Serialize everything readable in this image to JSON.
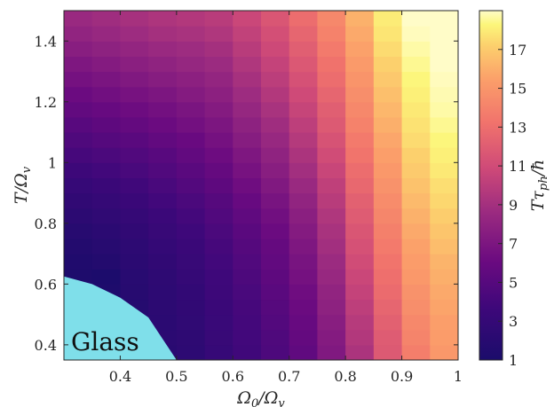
{
  "chart_data": {
    "type": "heatmap",
    "title": "",
    "xlabel": "Ω₀/Ω_v",
    "ylabel": "T/Ω_v",
    "colorbar_label": "Tτ_ph/ħ",
    "xlim": [
      0.3,
      1.0
    ],
    "ylim": [
      0.35,
      1.5
    ],
    "clim": [
      1,
      19
    ],
    "colormap": "magma-like (dark navy → purple → magenta → orange → pale yellow)",
    "x_ticks": [
      {
        "value": 0.4,
        "label": "0.4"
      },
      {
        "value": 0.5,
        "label": "0.5"
      },
      {
        "value": 0.6,
        "label": "0.6"
      },
      {
        "value": 0.7,
        "label": "0.7"
      },
      {
        "value": 0.8,
        "label": "0.8"
      },
      {
        "value": 0.9,
        "label": "0.9"
      },
      {
        "value": 1.0,
        "label": "1"
      }
    ],
    "y_ticks": [
      {
        "value": 0.4,
        "label": "0.4"
      },
      {
        "value": 0.6,
        "label": "0.6"
      },
      {
        "value": 0.8,
        "label": "0.8"
      },
      {
        "value": 1.0,
        "label": "1"
      },
      {
        "value": 1.2,
        "label": "1.2"
      },
      {
        "value": 1.4,
        "label": "1.4"
      }
    ],
    "colorbar_ticks": [
      {
        "value": 1,
        "label": "1"
      },
      {
        "value": 3,
        "label": "3"
      },
      {
        "value": 5,
        "label": "5"
      },
      {
        "value": 7,
        "label": "7"
      },
      {
        "value": 9,
        "label": "9"
      },
      {
        "value": 11,
        "label": "11"
      },
      {
        "value": 13,
        "label": "13"
      },
      {
        "value": 15,
        "label": "15"
      },
      {
        "value": 17,
        "label": "17"
      }
    ],
    "x_centers": [
      0.325,
      0.375,
      0.425,
      0.475,
      0.525,
      0.575,
      0.625,
      0.675,
      0.725,
      0.775,
      0.825,
      0.875,
      0.925,
      0.975
    ],
    "y_centers": [
      0.375,
      0.425,
      0.475,
      0.525,
      0.575,
      0.625,
      0.675,
      0.725,
      0.775,
      0.825,
      0.875,
      0.925,
      0.975,
      1.025,
      1.075,
      1.125,
      1.175,
      1.225,
      1.275,
      1.325,
      1.375,
      1.425,
      1.475
    ],
    "values": [
      [
        1.0,
        1.2,
        1.6,
        2.1,
        2.4,
        3.1,
        3.8,
        4.5,
        5.5,
        7.2,
        9.3,
        11.8,
        13.8,
        15.1
      ],
      [
        1.0,
        1.3,
        1.7,
        2.2,
        2.5,
        3.2,
        3.9,
        4.6,
        5.7,
        7.4,
        9.6,
        11.9,
        14.1,
        15.3
      ],
      [
        1.0,
        1.3,
        1.7,
        2.2,
        2.6,
        3.3,
        4.0,
        4.8,
        5.9,
        7.6,
        9.8,
        12.2,
        14.3,
        15.4
      ],
      [
        1.0,
        1.4,
        1.8,
        2.3,
        2.7,
        3.4,
        4.1,
        5.0,
        6.1,
        7.9,
        10.1,
        12.5,
        14.6,
        15.6
      ],
      [
        1.0,
        1.2,
        1.9,
        2.4,
        2.8,
        3.6,
        4.3,
        5.2,
        6.3,
        8.1,
        10.4,
        12.8,
        14.8,
        15.8
      ],
      [
        1.2,
        1.1,
        2.0,
        2.5,
        3.0,
        3.7,
        4.5,
        5.4,
        6.6,
        8.4,
        10.7,
        13.0,
        15.1,
        16.0
      ],
      [
        1.4,
        1.6,
        2.2,
        2.7,
        3.2,
        3.9,
        4.7,
        5.6,
        6.8,
        8.6,
        11.0,
        13.3,
        15.3,
        16.2
      ],
      [
        1.6,
        1.9,
        2.4,
        2.9,
        3.4,
        4.1,
        4.9,
        5.8,
        7.1,
        8.9,
        11.3,
        13.6,
        15.5,
        16.5
      ],
      [
        1.9,
        2.2,
        2.7,
        3.2,
        3.7,
        4.4,
        5.2,
        6.1,
        7.4,
        9.2,
        11.6,
        13.9,
        15.8,
        16.8
      ],
      [
        2.3,
        2.6,
        3.0,
        3.5,
        4.0,
        4.7,
        5.5,
        6.4,
        7.7,
        9.5,
        11.9,
        14.2,
        16.1,
        17.1
      ],
      [
        2.7,
        3.0,
        3.4,
        3.9,
        4.4,
        5.0,
        5.9,
        6.8,
        8.1,
        9.9,
        12.2,
        14.5,
        16.4,
        17.4
      ],
      [
        3.1,
        3.4,
        3.8,
        4.3,
        4.8,
        5.4,
        6.3,
        7.2,
        8.5,
        10.2,
        12.6,
        14.8,
        16.7,
        17.6
      ],
      [
        3.6,
        3.9,
        4.3,
        4.7,
        5.2,
        5.8,
        6.7,
        7.6,
        8.9,
        10.6,
        12.9,
        15.1,
        17.0,
        17.9
      ],
      [
        4.1,
        4.4,
        4.7,
        5.1,
        5.6,
        6.2,
        7.1,
        8.0,
        9.3,
        11.0,
        13.3,
        15.4,
        17.2,
        18.1
      ],
      [
        4.6,
        4.9,
        5.2,
        5.6,
        6.0,
        6.6,
        7.5,
        8.4,
        9.7,
        11.4,
        13.6,
        15.7,
        17.5,
        18.3
      ],
      [
        5.1,
        5.4,
        5.7,
        6.1,
        6.5,
        7.0,
        7.9,
        8.8,
        10.1,
        11.8,
        14.0,
        16.0,
        17.7,
        18.5
      ],
      [
        5.6,
        5.9,
        6.2,
        6.5,
        6.9,
        7.4,
        8.3,
        9.2,
        10.5,
        12.1,
        14.3,
        16.3,
        17.9,
        18.7
      ],
      [
        6.1,
        6.4,
        6.7,
        7.0,
        7.4,
        7.8,
        8.7,
        9.6,
        10.9,
        12.5,
        14.6,
        16.6,
        18.1,
        18.8
      ],
      [
        6.6,
        6.9,
        7.2,
        7.5,
        7.8,
        8.2,
        9.1,
        10.0,
        11.3,
        12.9,
        14.9,
        16.9,
        18.3,
        18.9
      ],
      [
        7.1,
        7.4,
        7.7,
        8.0,
        8.3,
        8.6,
        9.5,
        10.4,
        11.7,
        13.2,
        15.2,
        17.2,
        18.5,
        19.0
      ],
      [
        7.6,
        7.9,
        8.2,
        8.5,
        8.7,
        9.0,
        9.9,
        10.8,
        12.1,
        13.6,
        15.5,
        17.5,
        18.7,
        19.0
      ],
      [
        8.1,
        8.4,
        8.7,
        9.0,
        9.2,
        9.5,
        10.3,
        11.2,
        12.5,
        14.0,
        15.8,
        17.8,
        18.9,
        19.0
      ],
      [
        8.5,
        8.8,
        9.1,
        9.4,
        9.6,
        9.9,
        10.7,
        11.6,
        12.9,
        14.3,
        16.1,
        18.0,
        19.0,
        19.0
      ]
    ],
    "glass_region": {
      "label": "Glass",
      "color": "#7fdfea",
      "boundary": [
        [
          0.3,
          0.625
        ],
        [
          0.35,
          0.6
        ],
        [
          0.4,
          0.555
        ],
        [
          0.45,
          0.49
        ],
        [
          0.5,
          0.35
        ]
      ]
    },
    "grid": false,
    "colorbar_placement": "right"
  }
}
